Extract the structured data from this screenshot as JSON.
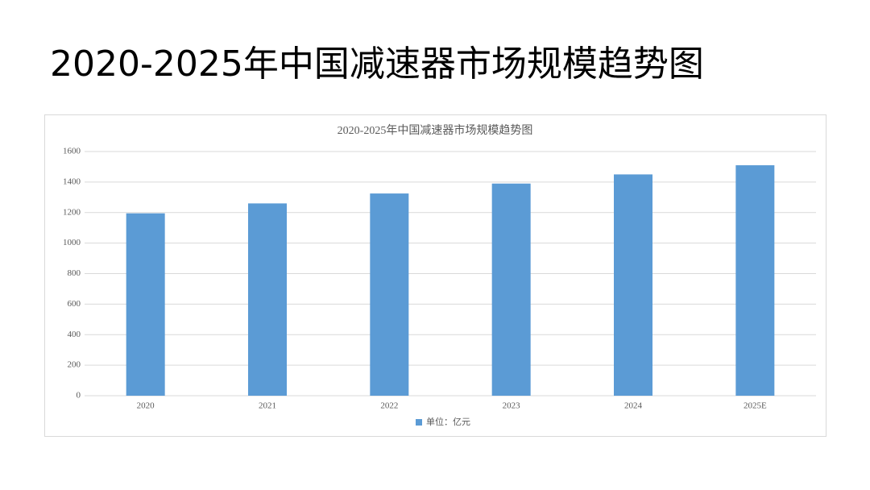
{
  "page_title": "2020-2025年中国减速器市场规模趋势图",
  "chart_data": {
    "type": "bar",
    "title": "2020-2025年中国减速器市场规模趋势图",
    "categories": [
      "2020",
      "2021",
      "2022",
      "2023",
      "2024",
      "2025E"
    ],
    "series": [
      {
        "name": "单位：亿元",
        "color": "#5b9bd5",
        "values": [
          1195,
          1260,
          1325,
          1390,
          1450,
          1510
        ]
      }
    ],
    "ylim": [
      0,
      1600
    ],
    "yticks": [
      0,
      200,
      400,
      600,
      800,
      1000,
      1200,
      1400,
      1600
    ],
    "grid": true,
    "legend": "bottom"
  }
}
